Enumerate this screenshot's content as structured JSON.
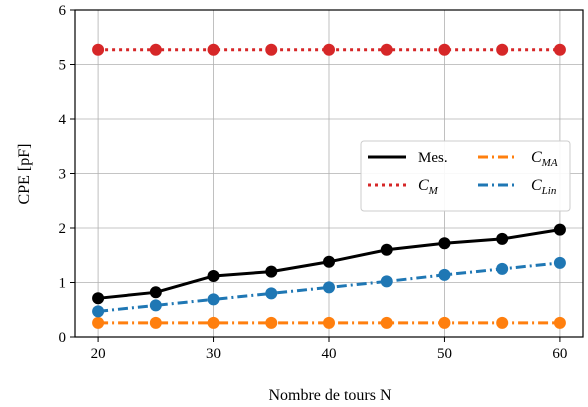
{
  "chart_data": {
    "type": "line",
    "title": "",
    "xlabel": "Nombre de tours N",
    "ylabel": "CPE [pF]",
    "xlim": [
      18,
      62
    ],
    "ylim": [
      0,
      6
    ],
    "xticks": [
      20,
      30,
      40,
      50,
      60
    ],
    "yticks": [
      0,
      1,
      2,
      3,
      4,
      5,
      6
    ],
    "grid": true,
    "legend_position": "center-right",
    "x": [
      20,
      25,
      30,
      35,
      40,
      45,
      50,
      55,
      60
    ],
    "series": [
      {
        "key": "mes",
        "name": "Mes.",
        "name_sub": "",
        "style": "solid",
        "color": "#000000",
        "values": [
          0.71,
          0.82,
          1.12,
          1.2,
          1.38,
          1.6,
          1.72,
          1.8,
          1.97
        ]
      },
      {
        "key": "cm",
        "name": "C",
        "name_sub": "M",
        "style": "dotted",
        "color": "#d62728",
        "values": [
          5.27,
          5.27,
          5.27,
          5.27,
          5.27,
          5.27,
          5.27,
          5.27,
          5.27
        ]
      },
      {
        "key": "cma",
        "name": "C",
        "name_sub": "MA",
        "style": "dashdot",
        "color": "#ff7f0e",
        "values": [
          0.26,
          0.26,
          0.26,
          0.26,
          0.26,
          0.26,
          0.26,
          0.26,
          0.26
        ]
      },
      {
        "key": "clin",
        "name": "C",
        "name_sub": "Lin",
        "style": "dashdot",
        "color": "#1f77b4",
        "values": [
          0.47,
          0.58,
          0.69,
          0.8,
          0.91,
          1.02,
          1.14,
          1.25,
          1.36
        ]
      }
    ]
  }
}
